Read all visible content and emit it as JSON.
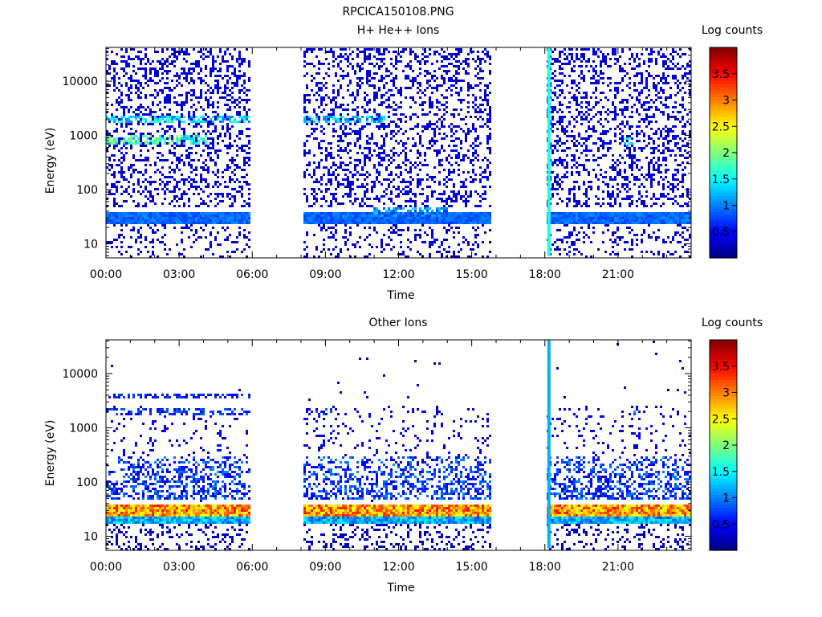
{
  "figure_title": "RPCICA150108.PNG",
  "chart_data": [
    {
      "type": "heatmap",
      "title": "H+ He++ Ions",
      "xlabel": "Time",
      "ylabel": "Energy (eV)",
      "x_ticks": [
        "00:00",
        "03:00",
        "06:00",
        "09:00",
        "12:00",
        "15:00",
        "18:00",
        "21:00"
      ],
      "x_tick_hours": [
        0,
        3,
        6,
        9,
        12,
        15,
        18,
        21
      ],
      "xlim_hours": [
        0,
        24
      ],
      "y_scale": "log",
      "y_ticks": [
        "10",
        "100",
        "1000",
        "10000"
      ],
      "y_tick_values": [
        10,
        100,
        1000,
        10000
      ],
      "ylim": [
        5.5,
        42000
      ],
      "data_intervals_hours": [
        [
          0,
          5.9
        ],
        [
          8.1,
          15.85
        ],
        [
          18.05,
          24
        ]
      ],
      "colorbar": {
        "label": "Log counts",
        "ticks": [
          "0.5",
          "1",
          "1.5",
          "2",
          "2.5",
          "3",
          "3.5"
        ],
        "tick_values": [
          0.5,
          1,
          1.5,
          2,
          2.5,
          3,
          3.5
        ],
        "range": [
          0,
          4
        ],
        "colormap": "jet"
      },
      "features": {
        "background_energy_bands": [
          [
            24,
            40
          ],
          [
            6,
            22
          ]
        ],
        "background_level": 0.7,
        "sparse_noise_above_eV": 45,
        "sparse_noise_level": 0.2,
        "bright_bands": [
          {
            "hours": [
              0,
              5.9
            ],
            "energy": [
              1700,
              2200
            ],
            "level": 1.6
          },
          {
            "hours": [
              0,
              4.2
            ],
            "energy": [
              700,
              1000
            ],
            "level": 2.0
          },
          {
            "hours": [
              8.1,
              11.5
            ],
            "energy": [
              1700,
              2200
            ],
            "level": 1.5
          },
          {
            "hours": [
              21.2,
              21.6
            ],
            "energy": [
              600,
              900
            ],
            "level": 1.9
          },
          {
            "hours": [
              11.0,
              14.0
            ],
            "energy": [
              30,
              45
            ],
            "level": 1.2
          }
        ],
        "spike": {
          "hour": 18.1,
          "energy": [
            6,
            42000
          ],
          "level": 1.6
        }
      }
    },
    {
      "type": "heatmap",
      "title": "Other Ions",
      "xlabel": "Time",
      "ylabel": "Energy (eV)",
      "x_ticks": [
        "00:00",
        "03:00",
        "06:00",
        "09:00",
        "12:00",
        "15:00",
        "18:00",
        "21:00"
      ],
      "x_tick_hours": [
        0,
        3,
        6,
        9,
        12,
        15,
        18,
        21
      ],
      "xlim_hours": [
        0,
        24
      ],
      "y_scale": "log",
      "y_ticks": [
        "10",
        "100",
        "1000",
        "10000"
      ],
      "y_tick_values": [
        10,
        100,
        1000,
        10000
      ],
      "ylim": [
        5.5,
        42000
      ],
      "data_intervals_hours": [
        [
          0,
          5.9
        ],
        [
          8.1,
          15.85
        ],
        [
          18.05,
          24
        ]
      ],
      "colorbar": {
        "label": "Log counts",
        "ticks": [
          "0.5",
          "1",
          "1.5",
          "2",
          "2.5",
          "3",
          "3.5"
        ],
        "tick_values": [
          0.5,
          1,
          1.5,
          2,
          2.5,
          3,
          3.5
        ],
        "range": [
          0,
          4
        ],
        "colormap": "jet"
      },
      "features": {
        "main_band": {
          "energy": [
            24,
            40
          ],
          "level": 3.3
        },
        "lower_band": {
          "energy": [
            17,
            24
          ],
          "level": 1.3
        },
        "enhanced_region": {
          "energy": [
            45,
            300
          ],
          "level": 0.9
        },
        "scattered_bands": [
          {
            "hours": [
              0,
              5.9
            ],
            "energy": [
              3500,
              4400
            ],
            "level": 0.6
          },
          {
            "hours": [
              0,
              5.9
            ],
            "energy": [
              1700,
              2200
            ],
            "level": 0.7
          },
          {
            "hours": [
              8.1,
              9.3
            ],
            "energy": [
              1700,
              2200
            ],
            "level": 0.7
          },
          {
            "hours": [
              21.3,
              21.7
            ],
            "energy": [
              1700,
              2200
            ],
            "level": 0.9
          }
        ],
        "spike": {
          "hour": 18.1,
          "energy": [
            6,
            42000
          ],
          "level": 1.2
        }
      }
    }
  ]
}
